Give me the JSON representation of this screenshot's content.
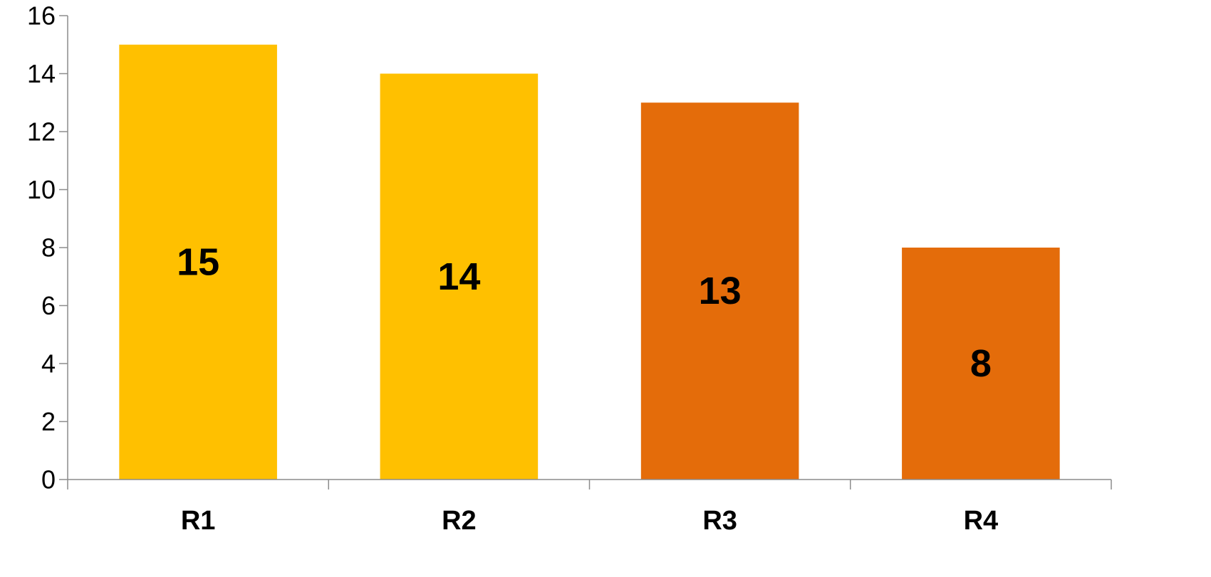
{
  "chart_data": {
    "type": "bar",
    "title": "",
    "xlabel": "",
    "ylabel": "",
    "categories": [
      "R1",
      "R2",
      "R3",
      "R4"
    ],
    "values": [
      15,
      14,
      13,
      8
    ],
    "data_labels": [
      "15",
      "14",
      "13",
      "8"
    ],
    "bar_colors": [
      "#FFC000",
      "#FFC000",
      "#E46C0A",
      "#E46C0A"
    ],
    "ylim": [
      0,
      16
    ],
    "yticks": [
      0,
      2,
      4,
      6,
      8,
      10,
      12,
      14,
      16
    ],
    "ytick_labels": [
      "0",
      "2",
      "4",
      "6",
      "8",
      "10",
      "12",
      "14",
      "16"
    ],
    "grid": false,
    "legend": "none"
  }
}
